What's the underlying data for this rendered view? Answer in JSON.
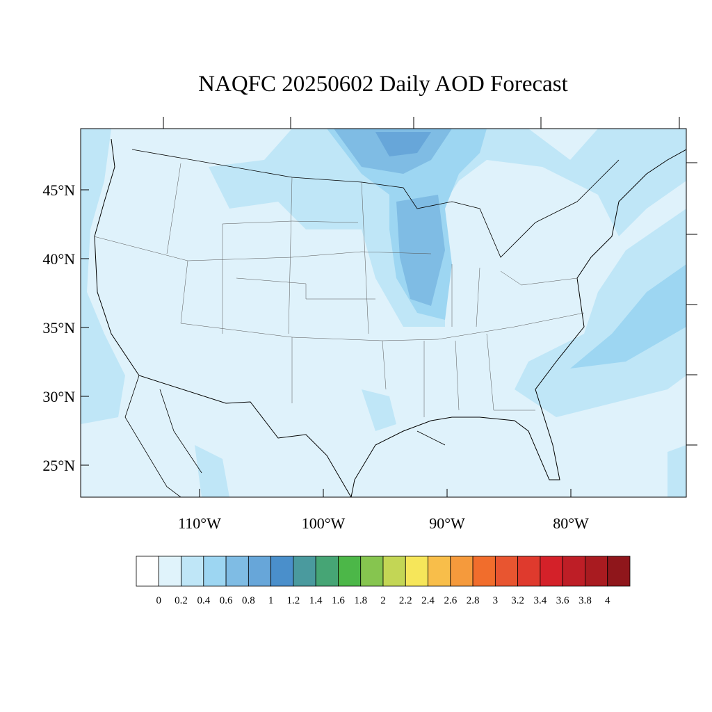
{
  "title": "NAQFC 20250602 Daily AOD Forecast",
  "map": {
    "lat_labels": [
      "45°N",
      "40°N",
      "35°N",
      "30°N",
      "25°N"
    ],
    "lon_labels": [
      "110°W",
      "100°W",
      "90°W",
      "80°W"
    ]
  },
  "colorbar": {
    "levels": [
      0,
      0.2,
      0.4,
      0.6,
      0.8,
      1,
      1.2,
      1.4,
      1.6,
      1.8,
      2,
      2.2,
      2.4,
      2.6,
      2.8,
      3,
      3.2,
      3.4,
      3.6,
      3.8,
      4
    ],
    "colors": [
      "#ffffff",
      "#e0f3fb",
      "#bfe6f7",
      "#9dd6f2",
      "#7fbce4",
      "#67a6d9",
      "#4a8fcb",
      "#4a9a9e",
      "#46a575",
      "#4cb748",
      "#86c54f",
      "#c3d655",
      "#f6e65a",
      "#f8be4a",
      "#f59a3c",
      "#f16d2c",
      "#e85530",
      "#df3a2d",
      "#d42129",
      "#be1e26",
      "#a91b20",
      "#8f161b"
    ]
  }
}
